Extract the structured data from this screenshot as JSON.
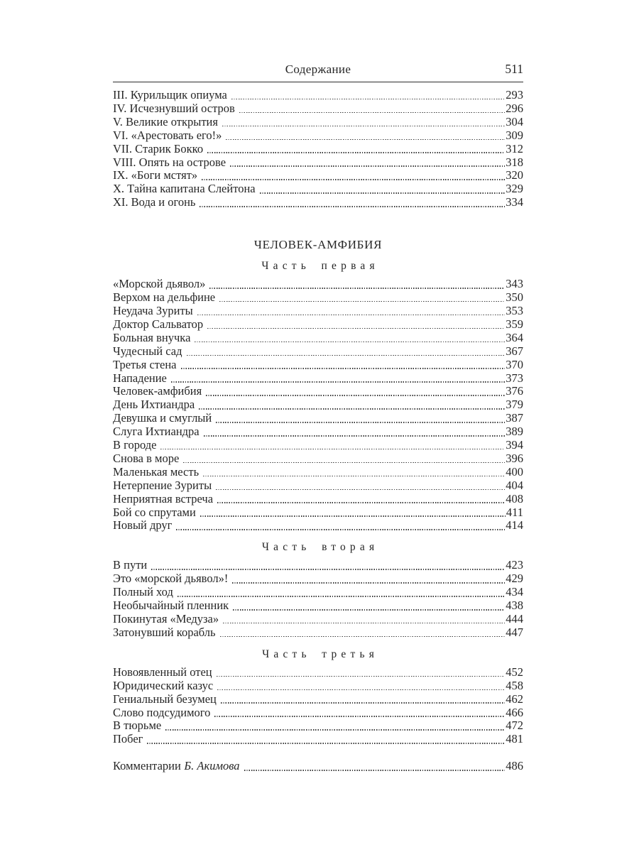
{
  "colors": {
    "text": "#262626",
    "rule": "#2e2e2e",
    "leader": "#3c3c3c",
    "background": "#ffffff"
  },
  "header": {
    "title": "Содержание",
    "page_number": "511"
  },
  "toc": {
    "blocks": [
      {
        "type": "entries",
        "entries": [
          {
            "title": "III. Курильщик опиума",
            "page": "293"
          },
          {
            "title": "IV. Исчезнувший остров",
            "page": "296"
          },
          {
            "title": "V. Великие открытия",
            "page": "304"
          },
          {
            "title": "VI. «Арестовать его!»",
            "page": "309"
          },
          {
            "title": "VII. Старик Бокко",
            "page": "312"
          },
          {
            "title": "VIII. Опять на острове",
            "page": "318"
          },
          {
            "title": "IX. «Боги мстят»",
            "page": "320"
          },
          {
            "title": "X. Тайна капитана Слейтона",
            "page": "329"
          },
          {
            "title": "XI. Вода и огонь",
            "page": "334"
          }
        ]
      },
      {
        "type": "section_title",
        "text": "ЧЕЛОВЕК-АМФИБИЯ"
      },
      {
        "type": "part_title",
        "text": "Часть первая"
      },
      {
        "type": "entries",
        "entries": [
          {
            "title": "«Морской дьявол»",
            "page": "343"
          },
          {
            "title": "Верхом на дельфине",
            "page": "350"
          },
          {
            "title": "Неудача Зуриты",
            "page": "353"
          },
          {
            "title": "Доктор Сальватор",
            "page": "359"
          },
          {
            "title": "Больная внучка",
            "page": "364"
          },
          {
            "title": "Чудесный сад",
            "page": "367"
          },
          {
            "title": "Третья стена",
            "page": "370"
          },
          {
            "title": "Нападение",
            "page": "373"
          },
          {
            "title": "Человек-амфибия",
            "page": "376"
          },
          {
            "title": "День Ихтиандра",
            "page": "379"
          },
          {
            "title": "Девушка и смуглый",
            "page": "387"
          },
          {
            "title": "Слуга Ихтиандра",
            "page": "389"
          },
          {
            "title": "В городе",
            "page": "394"
          },
          {
            "title": "Снова в море",
            "page": "396"
          },
          {
            "title": "Маленькая месть",
            "page": "400"
          },
          {
            "title": "Нетерпение Зуриты",
            "page": "404"
          },
          {
            "title": "Неприятная встреча",
            "page": "408"
          },
          {
            "title": "Бой со спрутами",
            "page": "411"
          },
          {
            "title": "Новый друг",
            "page": "414"
          }
        ]
      },
      {
        "type": "part_title",
        "text": "Часть вторая"
      },
      {
        "type": "entries",
        "entries": [
          {
            "title": "В пути",
            "page": "423"
          },
          {
            "title": "Это «морской дьявол»!",
            "page": "429"
          },
          {
            "title": "Полный ход",
            "page": "434"
          },
          {
            "title": "Необычайный пленник",
            "page": "438"
          },
          {
            "title": "Покинутая «Медуза»",
            "page": "444"
          },
          {
            "title": "Затонувший корабль",
            "page": "447"
          }
        ]
      },
      {
        "type": "part_title",
        "text": "Часть третья"
      },
      {
        "type": "entries",
        "entries": [
          {
            "title": "Новоявленный отец",
            "page": "452"
          },
          {
            "title": "Юридический казус",
            "page": "458"
          },
          {
            "title": "Гениальный безумец",
            "page": "462"
          },
          {
            "title": "Слово подсудимого",
            "page": "466"
          },
          {
            "title": "В тюрьме",
            "page": "472"
          },
          {
            "title": "Побег",
            "page": "481"
          }
        ]
      },
      {
        "type": "entries",
        "gap_top": true,
        "entries": [
          {
            "title": "Комментарии",
            "title_italic": "Б. Акимова",
            "page": "486"
          }
        ]
      }
    ]
  }
}
